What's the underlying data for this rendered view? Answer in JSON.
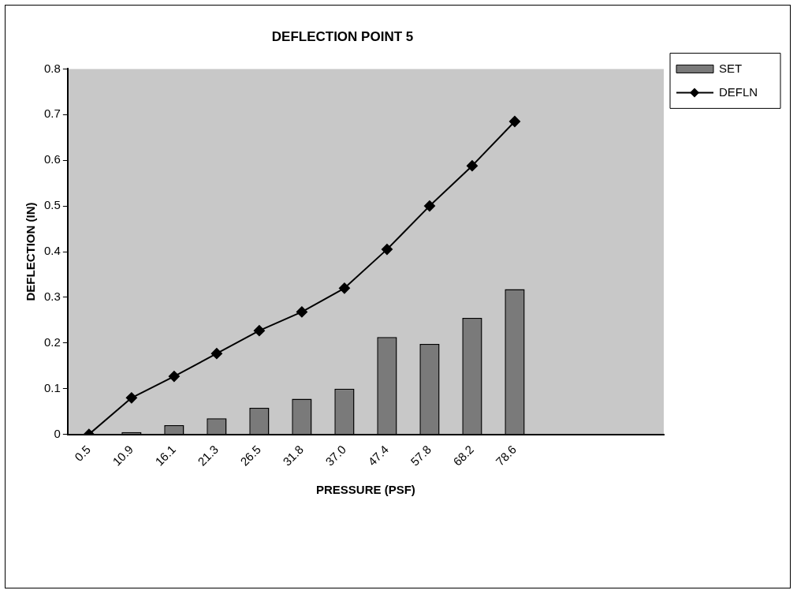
{
  "chart_data": {
    "type": "bar",
    "title": "DEFLECTION POINT 5",
    "xlabel": "PRESSURE (PSF)",
    "ylabel": "DEFLECTION (IN)",
    "categories": [
      "0.5",
      "10.9",
      "16.1",
      "21.3",
      "26.5",
      "31.8",
      "37.0",
      "47.4",
      "57.8",
      "68.2",
      "78.6",
      null,
      null,
      null
    ],
    "series": [
      {
        "name": "SET",
        "color": "#7a7a7a",
        "values": [
          null,
          0.005,
          0.02,
          0.035,
          0.058,
          0.078,
          0.1,
          0.213,
          0.198,
          0.255,
          0.318,
          null,
          null,
          null
        ]
      },
      {
        "name": "DEFLN",
        "type": "line",
        "color": "#000000",
        "values": [
          0,
          0.08,
          0.127,
          0.177,
          0.227,
          0.268,
          0.32,
          0.405,
          0.5,
          0.588,
          0.685,
          null,
          null,
          null
        ]
      }
    ],
    "ylim": [
      0,
      0.8
    ],
    "yticks": [
      0,
      0.1,
      0.2,
      0.3,
      0.4,
      0.5,
      0.6,
      0.7,
      0.8
    ],
    "grid": false,
    "legend": "top right",
    "marker": "diamond",
    "line_style": "solid"
  }
}
